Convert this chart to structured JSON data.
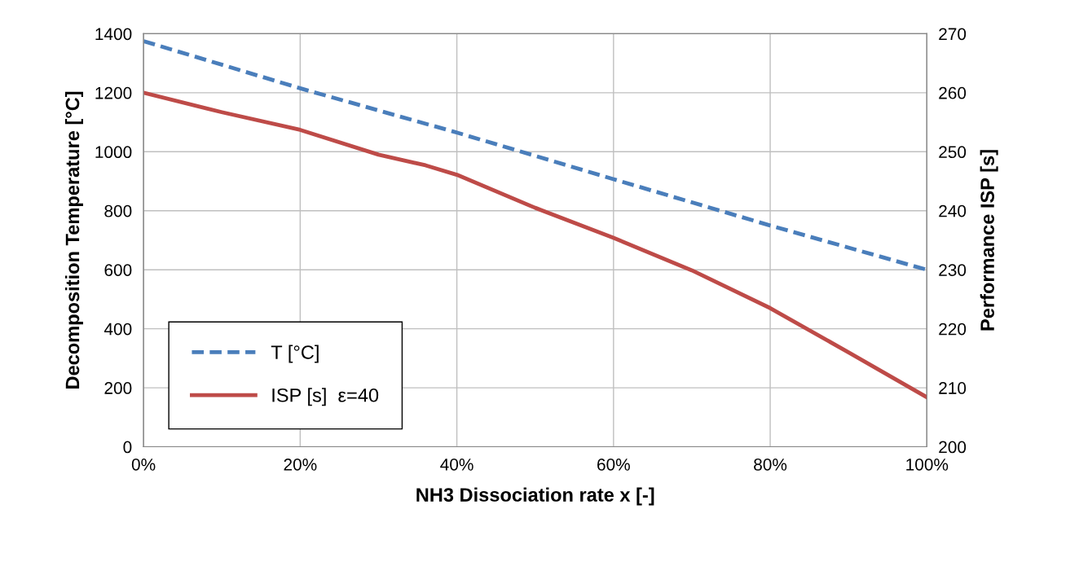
{
  "chart_data": {
    "type": "line",
    "xlabel": "NH3 Dissociation rate x [-]",
    "ylabel": "Decomposition Temperature [°C]",
    "y2label": "Performance ISP [s]",
    "x": [
      0,
      10,
      20,
      30,
      36,
      40,
      50,
      60,
      70,
      80,
      90,
      100
    ],
    "series": [
      {
        "name": "T [°C]",
        "color": "#4a7ebb",
        "line_style": "dashed",
        "x": [
          0,
          20,
          40,
          60,
          80,
          100
        ],
        "values": [
          1375,
          1215,
          1065,
          907,
          750,
          600
        ]
      },
      {
        "name": "ISP [s]  ε=40",
        "color": "#be4b48",
        "line_style": "solid",
        "axis": "y2",
        "values": [
          260,
          256.7,
          253.7,
          249.5,
          247.7,
          246.1,
          240.5,
          235.4,
          229.9,
          223.5,
          216,
          208.4
        ]
      }
    ],
    "xlim": [
      0,
      100
    ],
    "xticks": [
      {
        "value": 0,
        "label": "0%"
      },
      {
        "value": 20,
        "label": "20%"
      },
      {
        "value": 40,
        "label": "40%"
      },
      {
        "value": 60,
        "label": "60%"
      },
      {
        "value": 80,
        "label": "80%"
      },
      {
        "value": 100,
        "label": "100%"
      }
    ],
    "ylim": [
      0,
      1400
    ],
    "yticks": [
      0,
      200,
      400,
      600,
      800,
      1000,
      1200,
      1400
    ],
    "y2lim": [
      200,
      270
    ],
    "y2ticks": [
      200,
      210,
      220,
      230,
      240,
      250,
      260,
      270
    ],
    "grid": true,
    "legend": "bottom left",
    "marker": "none"
  }
}
